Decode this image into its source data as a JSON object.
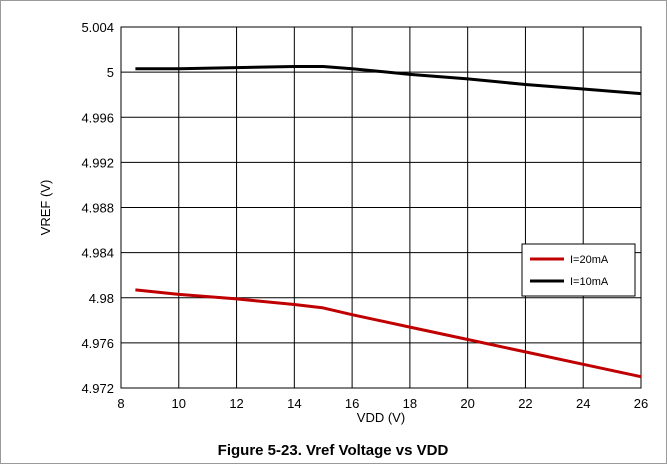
{
  "chart_data": {
    "type": "line",
    "xlabel": "VDD (V)",
    "ylabel": "VREF (V)",
    "xlim": [
      8,
      26
    ],
    "ylim": [
      4.972,
      5.004
    ],
    "xticks": [
      8,
      10,
      12,
      14,
      16,
      18,
      20,
      22,
      24,
      26
    ],
    "yticks": [
      4.972,
      4.976,
      4.98,
      4.984,
      4.988,
      4.992,
      4.996,
      5,
      5.004
    ],
    "xtick_labels": [
      "8",
      "10",
      "12",
      "14",
      "16",
      "18",
      "20",
      "22",
      "24",
      "26"
    ],
    "ytick_labels": [
      "4.972",
      "4.976",
      "4.98",
      "4.984",
      "4.988",
      "4.992",
      "4.996",
      "5",
      "5.004"
    ],
    "grid": true,
    "legend_position": "right",
    "series": [
      {
        "name": "I=20mA",
        "color": "#c00000",
        "x": [
          8.5,
          10,
          12,
          14,
          15,
          16,
          18,
          20,
          22,
          24,
          26
        ],
        "y": [
          4.9807,
          4.9803,
          4.9799,
          4.9794,
          4.9791,
          4.9785,
          4.9774,
          4.9763,
          4.9752,
          4.9741,
          4.973
        ]
      },
      {
        "name": "I=10mA",
        "color": "#000000",
        "x": [
          8.5,
          10,
          12,
          14,
          15,
          16,
          18,
          20,
          22,
          24,
          26
        ],
        "y": [
          5.0003,
          5.0003,
          5.0004,
          5.0005,
          5.0005,
          5.0003,
          4.9998,
          4.9994,
          4.9989,
          4.9985,
          4.9981
        ]
      }
    ]
  },
  "caption": "Figure 5-23. Vref Voltage vs VDD"
}
